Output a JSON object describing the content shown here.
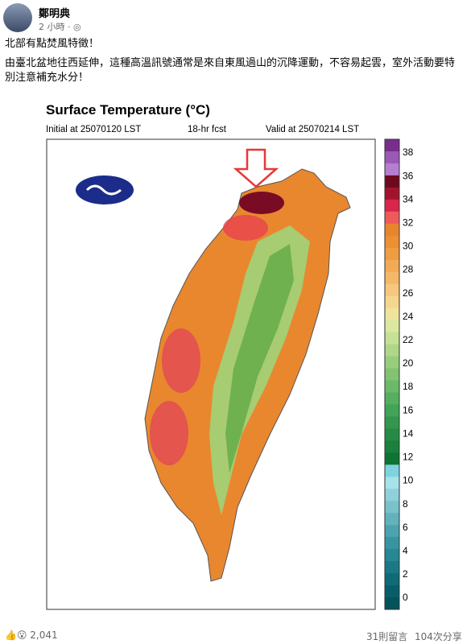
{
  "post": {
    "author": "鄭明典",
    "time": "2 小時",
    "lines": [
      "北部有點焚風特徵！",
      "由臺北盆地往西延伸，這種高溫訊號通常是來自東風過山的沉降運動，不容易起雲，室外活動要特別注意補充水分！"
    ]
  },
  "figure": {
    "title": "Surface Temperature (°C)",
    "initial": "Initial at 25070120 LST",
    "fcst": "18-hr fcst",
    "valid": "Valid at 25070214 LST",
    "colorbar_ticks": [
      "38",
      "36",
      "34",
      "32",
      "30",
      "28",
      "26",
      "24",
      "22",
      "20",
      "18",
      "16",
      "14",
      "12",
      "10",
      "8",
      "6",
      "4",
      "2",
      "0"
    ]
  },
  "footer": {
    "reactions": "2,041",
    "comments": "31則留言",
    "shares": "104次分享"
  }
}
